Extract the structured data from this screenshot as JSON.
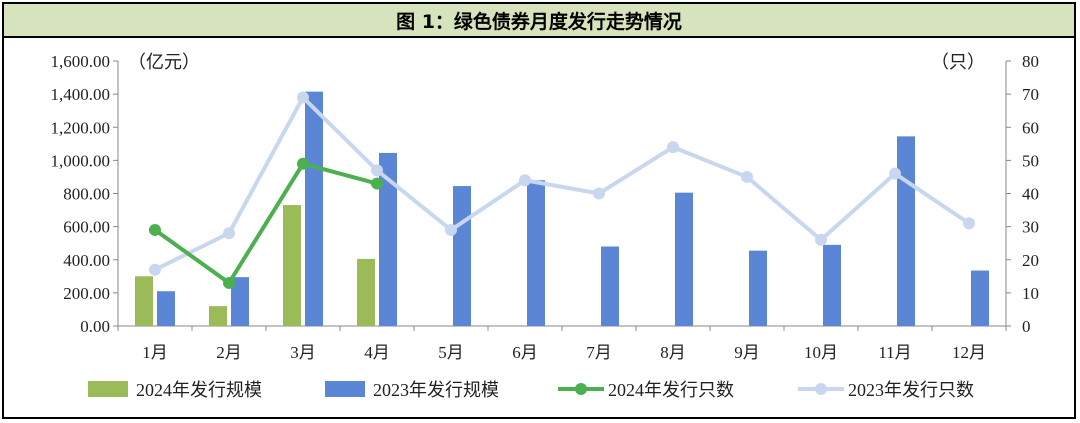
{
  "title": "图 1：绿色债券月度发行走势情况",
  "chart_data": {
    "type": "bar+line",
    "categories": [
      "1月",
      "2月",
      "3月",
      "4月",
      "5月",
      "6月",
      "7月",
      "8月",
      "9月",
      "10月",
      "11月",
      "12月"
    ],
    "left_axis": {
      "unit_label": "（亿元）",
      "ylim": [
        0,
        1600
      ],
      "ticks": [
        "0.00",
        "200.00",
        "400.00",
        "600.00",
        "800.00",
        "1,000.00",
        "1,200.00",
        "1,400.00",
        "1,600.00"
      ]
    },
    "right_axis": {
      "unit_label": "（只）",
      "ylim": [
        0,
        80
      ],
      "ticks": [
        "0",
        "10",
        "20",
        "30",
        "40",
        "50",
        "60",
        "70",
        "80"
      ]
    },
    "series": [
      {
        "name": "2024年发行规模",
        "kind": "bar",
        "axis": "left",
        "color": "#9bbb59",
        "values": [
          300,
          120,
          730,
          405,
          null,
          null,
          null,
          null,
          null,
          null,
          null,
          null
        ]
      },
      {
        "name": "2023年发行规模",
        "kind": "bar",
        "axis": "left",
        "color": "#5b86d6",
        "values": [
          210,
          295,
          1415,
          1045,
          845,
          880,
          480,
          805,
          455,
          490,
          1145,
          335
        ]
      },
      {
        "name": "2024年发行只数",
        "kind": "line",
        "axis": "right",
        "color": "#4caf50",
        "values": [
          29,
          13,
          49,
          43,
          null,
          null,
          null,
          null,
          null,
          null,
          null,
          null
        ]
      },
      {
        "name": "2023年发行只数",
        "kind": "line",
        "axis": "right",
        "color": "#c9d7ee",
        "values": [
          17,
          28,
          69,
          47,
          29,
          44,
          40,
          54,
          45,
          26,
          46,
          31
        ]
      }
    ],
    "legend_position": "bottom",
    "grid": false
  }
}
